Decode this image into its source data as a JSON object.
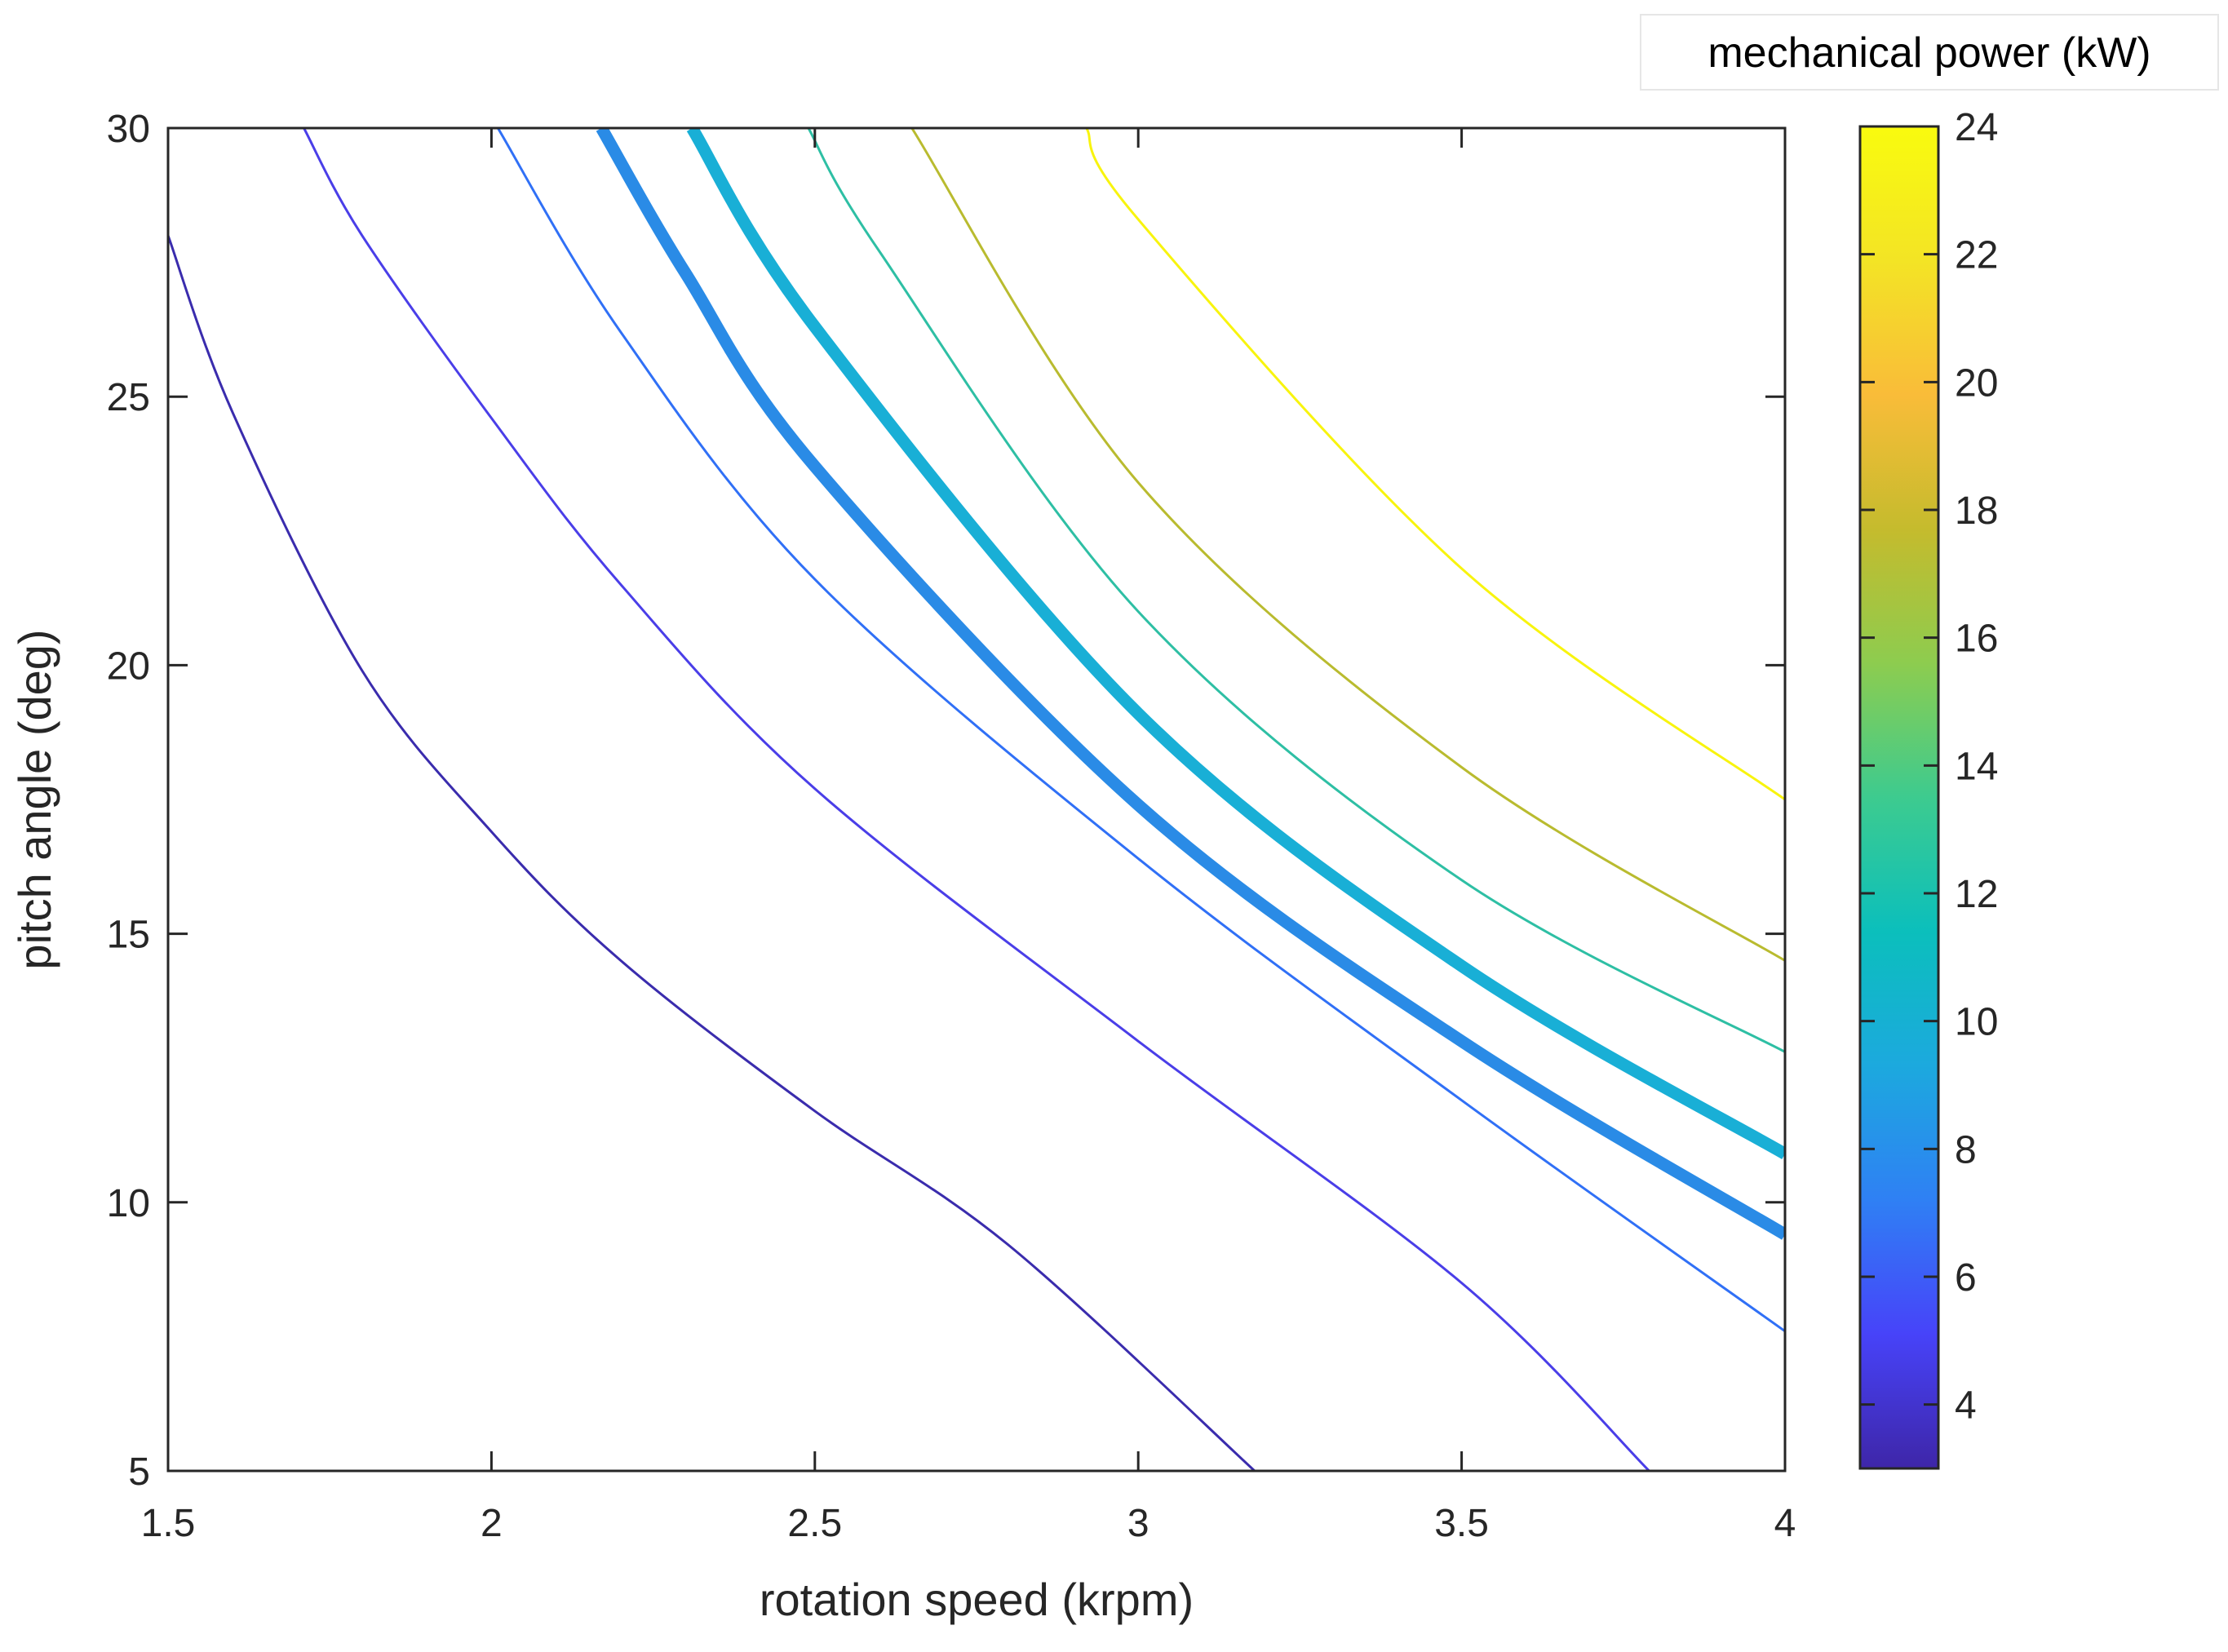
{
  "chart_data": {
    "type": "line",
    "subtype": "contour",
    "title": "",
    "xlabel": "rotation speed (krpm)",
    "ylabel": "pitch angle (deg)",
    "xlim": [
      1.5,
      4
    ],
    "ylim": [
      5,
      30
    ],
    "xticks": [
      "1.5",
      "2",
      "2.5",
      "3",
      "3.5",
      "4"
    ],
    "yticks": [
      "5",
      "10",
      "15",
      "20",
      "25",
      "30"
    ],
    "grid": false,
    "colorbar": {
      "title": "mechanical power (kW)",
      "range": [
        3,
        24
      ],
      "ticks": [
        "4",
        "6",
        "8",
        "10",
        "12",
        "14",
        "16",
        "18",
        "20",
        "22",
        "24"
      ],
      "colormap": [
        "#3e26a8",
        "#4743f9",
        "#2f80f4",
        "#1ca9de",
        "#0bbfbc",
        "#3dcb8f",
        "#8dcc4f",
        "#c5bb2d",
        "#f9bc39",
        "#f3e425",
        "#f9fb0e"
      ]
    },
    "series": [
      {
        "level": 4,
        "color": "#3a2cad",
        "linewidth": 3,
        "x": [
          1.5,
          1.6,
          1.8,
          2.0,
          2.2,
          2.5,
          2.8,
          3.18
        ],
        "y": [
          28.0,
          24.7,
          19.9,
          16.9,
          14.5,
          11.7,
          9.2,
          5.0
        ]
      },
      {
        "level": 6,
        "color": "#4a3ee8",
        "linewidth": 3,
        "x": [
          1.71,
          1.8,
          2.0,
          2.2,
          2.5,
          3.0,
          3.5,
          3.79
        ],
        "y": [
          30.0,
          28.0,
          24.6,
          21.5,
          17.7,
          13.0,
          8.5,
          5.0
        ]
      },
      {
        "level": 8,
        "color": "#3070f6",
        "linewidth": 3,
        "x": [
          2.01,
          2.2,
          2.5,
          3.0,
          3.5,
          4.0
        ],
        "y": [
          30.0,
          26.2,
          21.6,
          16.4,
          11.9,
          7.6
        ]
      },
      {
        "level": 10,
        "color": "#2a8be6",
        "linewidth": 15,
        "x": [
          2.17,
          2.3,
          2.5,
          3.0,
          3.5,
          4.0
        ],
        "y": [
          30.0,
          27.3,
          23.7,
          17.4,
          13.0,
          9.4
        ]
      },
      {
        "level": 12,
        "color": "#19afd6",
        "linewidth": 15,
        "x": [
          2.31,
          2.5,
          3.0,
          3.5,
          4.0
        ],
        "y": [
          30.0,
          26.3,
          19.1,
          14.4,
          10.9
        ]
      },
      {
        "level": 14,
        "color": "#2ebfa4",
        "linewidth": 3,
        "x": [
          2.49,
          2.6,
          3.0,
          3.5,
          4.0
        ],
        "y": [
          30.0,
          27.7,
          21.0,
          16.0,
          12.8
        ]
      },
      {
        "level": 18,
        "color": "#b9bb2f",
        "linewidth": 3,
        "x": [
          2.65,
          3.0,
          3.5,
          4.0
        ],
        "y": [
          30.0,
          23.4,
          18.1,
          14.5
        ]
      },
      {
        "level": 24,
        "color": "#f8f40e",
        "linewidth": 3,
        "x": [
          2.92,
          3.0,
          3.5,
          4.0
        ],
        "y": [
          30.0,
          28.3,
          21.8,
          17.5
        ]
      }
    ]
  }
}
